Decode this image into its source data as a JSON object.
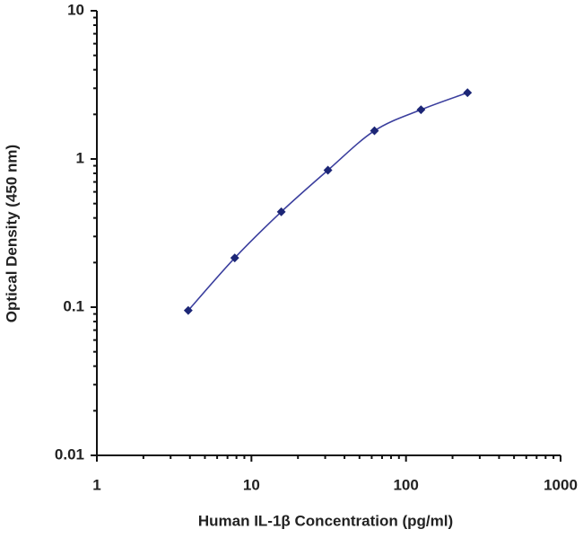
{
  "chart_data": {
    "type": "line",
    "x_label": "Human IL-1β Concentration (pg/ml)",
    "y_label": "Optical Density (450 nm)",
    "x": [
      3.9,
      7.8,
      15.6,
      31.25,
      62.5,
      125,
      250
    ],
    "series": [
      {
        "color": "#3b3f9e",
        "marker_color": "#1c2676",
        "values": [
          0.095,
          0.215,
          0.44,
          0.84,
          1.55,
          2.15,
          2.8
        ]
      }
    ],
    "xlim": [
      1,
      1000
    ],
    "ylim": [
      0.01,
      10
    ],
    "xticks": [
      1,
      10,
      100,
      1000
    ],
    "yticks": [
      0.01,
      0.1,
      1,
      10
    ],
    "log_x": true,
    "log_y": true,
    "minor_ticks": true,
    "grid": false
  }
}
